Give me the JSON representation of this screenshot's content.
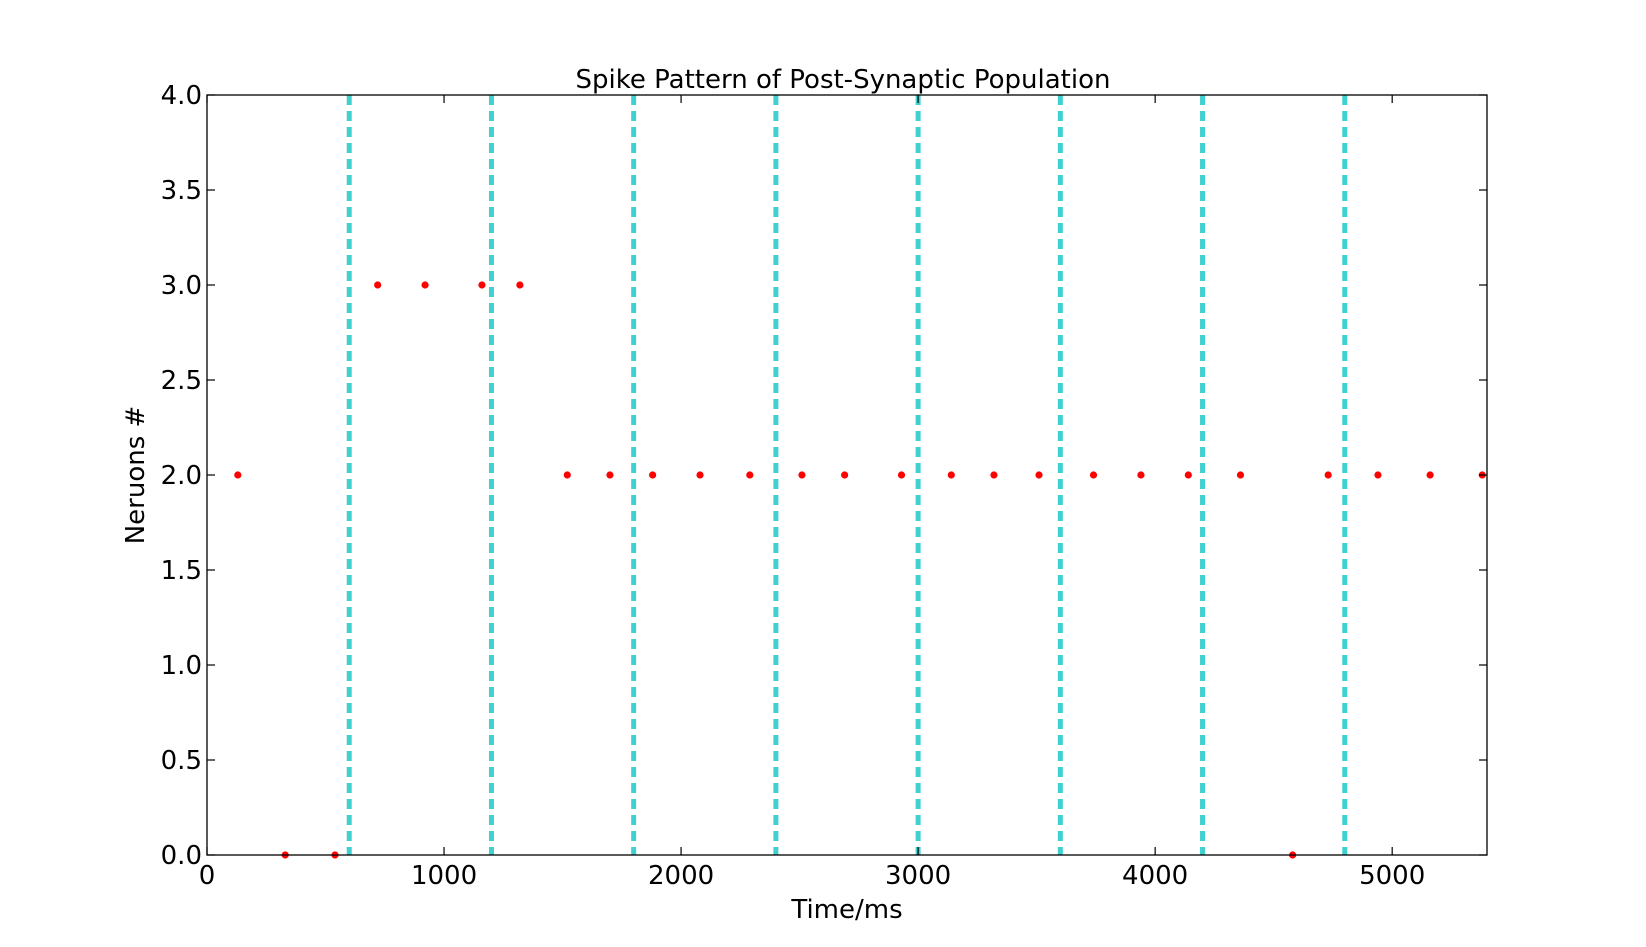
{
  "chart_data": {
    "type": "scatter",
    "title": "Spike Pattern of Post-Synaptic Population",
    "xlabel": "Time/ms",
    "ylabel": "Neruons #",
    "xlim": [
      0,
      5400
    ],
    "ylim": [
      0.0,
      4.0
    ],
    "xticks": [
      0,
      1000,
      2000,
      3000,
      4000,
      5000
    ],
    "xtick_labels": [
      "0",
      "1000",
      "2000",
      "3000",
      "4000",
      "5000"
    ],
    "yticks": [
      0.0,
      0.5,
      1.0,
      1.5,
      2.0,
      2.5,
      3.0,
      3.5,
      4.0
    ],
    "ytick_labels": [
      "0.0",
      "0.5",
      "1.0",
      "1.5",
      "2.0",
      "2.5",
      "3.0",
      "3.5",
      "4.0"
    ],
    "grid": false,
    "legend": "none",
    "colors": {
      "spike": "#ff0000",
      "marker_line": "#40d0d0",
      "axes": "#000000"
    },
    "series": [
      {
        "points": [
          [
            130,
            2
          ],
          [
            330,
            0
          ],
          [
            540,
            0
          ],
          [
            720,
            3
          ],
          [
            920,
            3
          ],
          [
            1160,
            3
          ],
          [
            1320,
            3
          ],
          [
            1520,
            2
          ],
          [
            1700,
            2
          ],
          [
            1880,
            2
          ],
          [
            2080,
            2
          ],
          [
            2290,
            2
          ],
          [
            2510,
            2
          ],
          [
            2690,
            2
          ],
          [
            2930,
            2
          ],
          [
            3140,
            2
          ],
          [
            3320,
            2
          ],
          [
            3510,
            2
          ],
          [
            3740,
            2
          ],
          [
            3940,
            2
          ],
          [
            4140,
            2
          ],
          [
            4360,
            2
          ],
          [
            4580,
            0
          ],
          [
            4730,
            2
          ],
          [
            4940,
            2
          ],
          [
            5160,
            2
          ],
          [
            5380,
            2
          ]
        ]
      }
    ],
    "vlines": [
      600,
      1200,
      1800,
      2400,
      3000,
      3600,
      4200,
      4800
    ]
  }
}
